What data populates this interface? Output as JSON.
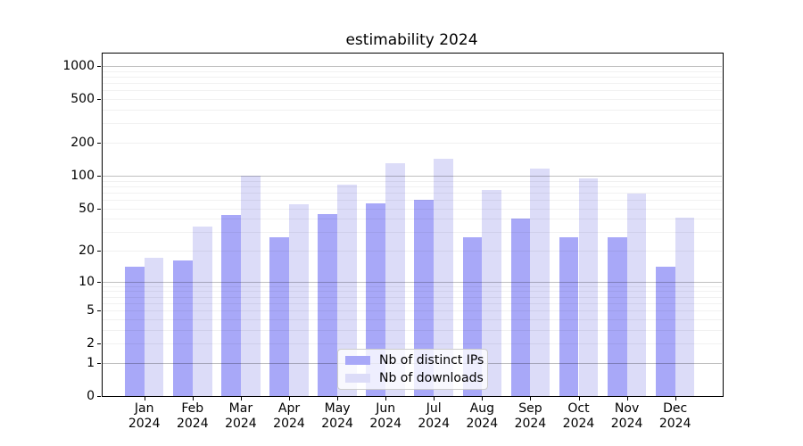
{
  "chart_data": {
    "type": "bar",
    "title": "estimability 2024",
    "categories": [
      "Jan",
      "Feb",
      "Mar",
      "Apr",
      "May",
      "Jun",
      "Jul",
      "Aug",
      "Sep",
      "Oct",
      "Nov",
      "Dec"
    ],
    "year_label": "2024",
    "series": [
      {
        "name": "Nb of distinct IPs",
        "color": "#a8a8f8",
        "values": [
          14,
          16,
          43,
          27,
          44,
          55,
          60,
          27,
          40,
          27,
          27,
          14
        ]
      },
      {
        "name": "Nb of downloads",
        "color": "#dcdcf8",
        "values": [
          17,
          34,
          100,
          54,
          82,
          129,
          143,
          74,
          117,
          95,
          68,
          41
        ]
      }
    ],
    "xlabel": "",
    "ylabel": "",
    "yscale": "log1p",
    "ylim": [
      0,
      1325
    ],
    "yticks": [
      0,
      1,
      2,
      5,
      10,
      20,
      50,
      100,
      200,
      500,
      1000
    ],
    "minor_gridlines": [
      3,
      4,
      6,
      7,
      8,
      9,
      30,
      40,
      60,
      70,
      80,
      90,
      300,
      400,
      600,
      700,
      800,
      900
    ],
    "grid": "on",
    "legend_position": "lower center",
    "colors": {
      "major_grid": "#c3c3c3",
      "minor_grid": "#f0f0f0",
      "axis": "#000000",
      "background": "#ffffff"
    }
  }
}
